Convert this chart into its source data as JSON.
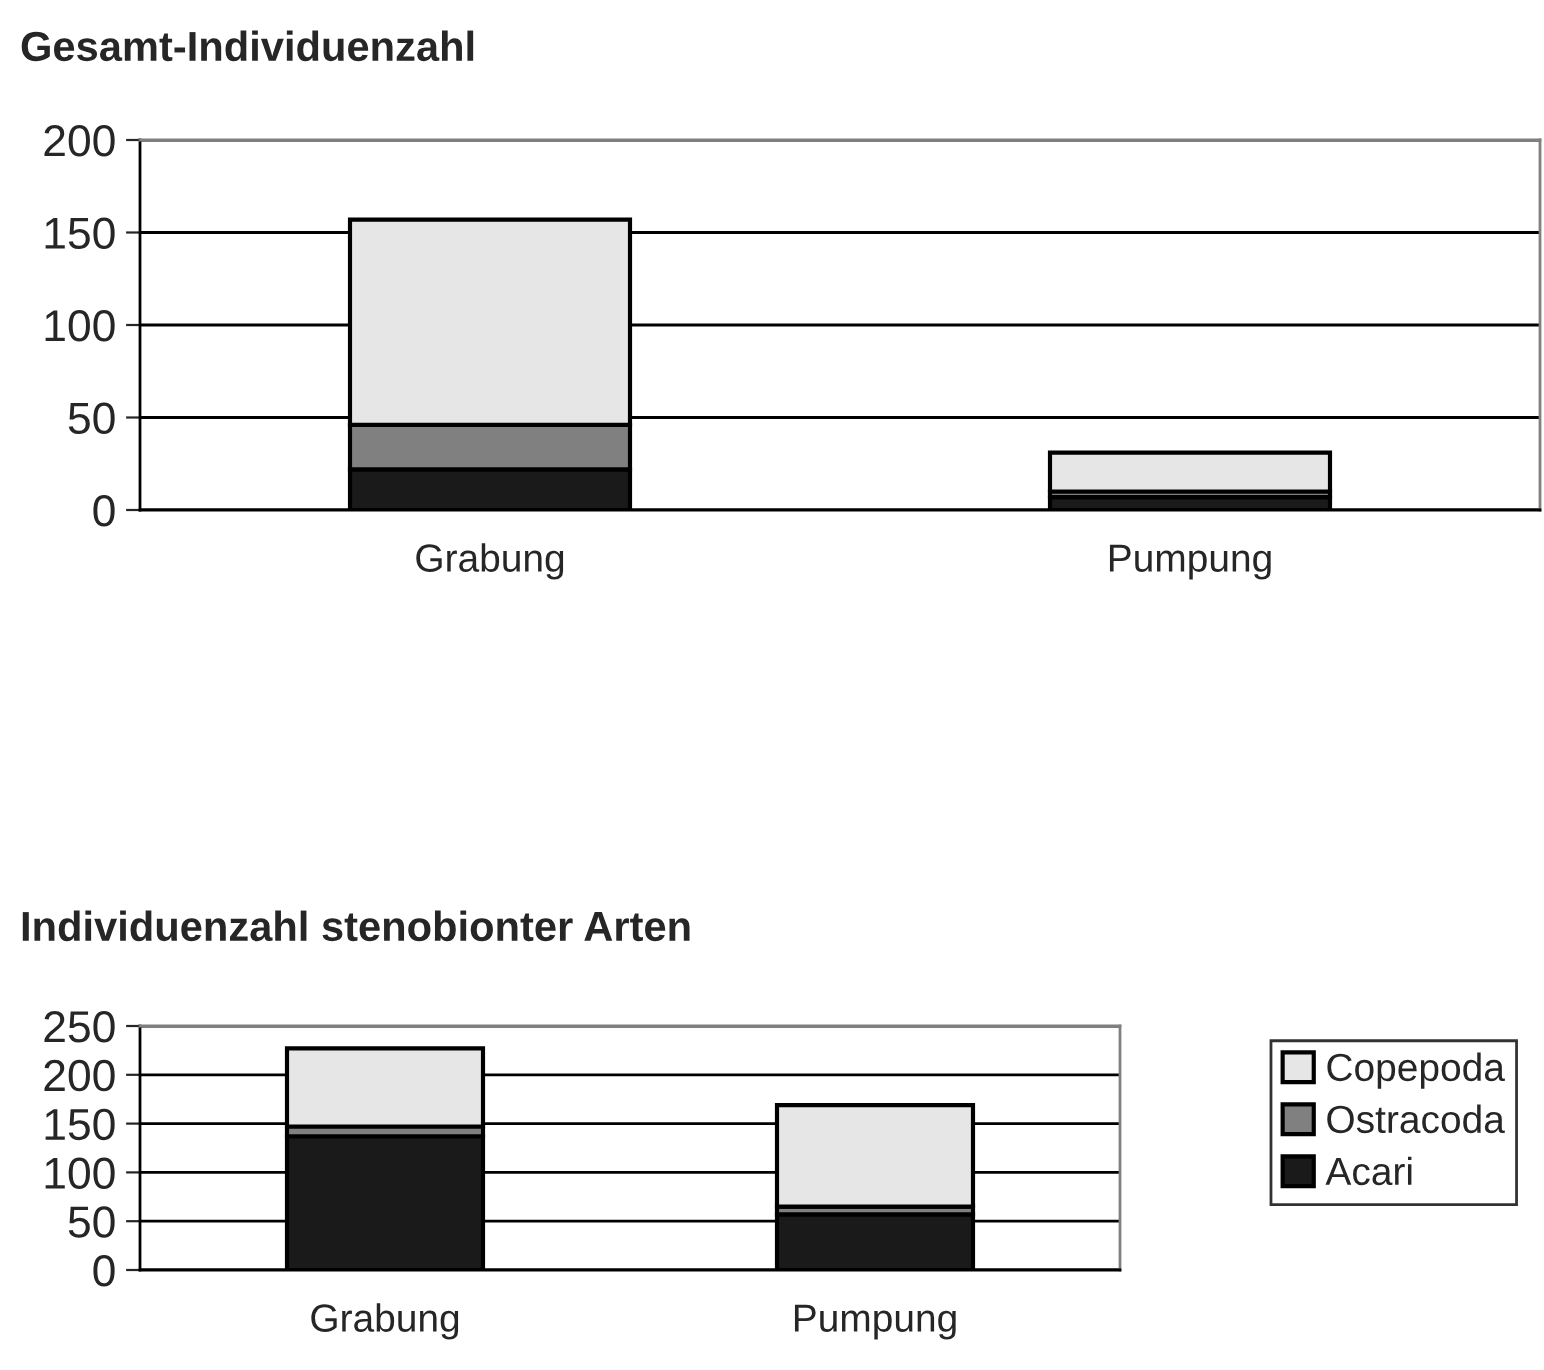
{
  "chart_data": [
    {
      "type": "bar",
      "title": "Gesamt-Individuenzahl",
      "categories": [
        "Grabung",
        "Pumpung"
      ],
      "stacked": true,
      "ylim": [
        0,
        200
      ],
      "yticks": [
        0,
        50,
        100,
        150,
        200
      ],
      "grid": "y",
      "legend": "bottom right",
      "series": [
        {
          "name": "Acari",
          "color": "#1a1a1a",
          "values": [
            22,
            7
          ]
        },
        {
          "name": "Ostracoda",
          "color": "#808080",
          "values": [
            24,
            3
          ]
        },
        {
          "name": "Copepoda",
          "color": "#e6e6e6",
          "values": [
            111,
            21
          ]
        }
      ]
    },
    {
      "type": "bar",
      "title": "Individuenzahl stenobionter Arten",
      "categories": [
        "Grabung",
        "Pumpung"
      ],
      "stacked": true,
      "ylim": [
        0,
        250
      ],
      "yticks": [
        0,
        50,
        100,
        150,
        200,
        250
      ],
      "grid": "y",
      "series": [
        {
          "color": "#1a1a1a",
          "values": [
            137,
            57
          ]
        },
        {
          "color": "#808080",
          "values": [
            10,
            8
          ]
        },
        {
          "color": "#e6e6e6",
          "values": [
            80,
            104
          ]
        }
      ]
    }
  ]
}
